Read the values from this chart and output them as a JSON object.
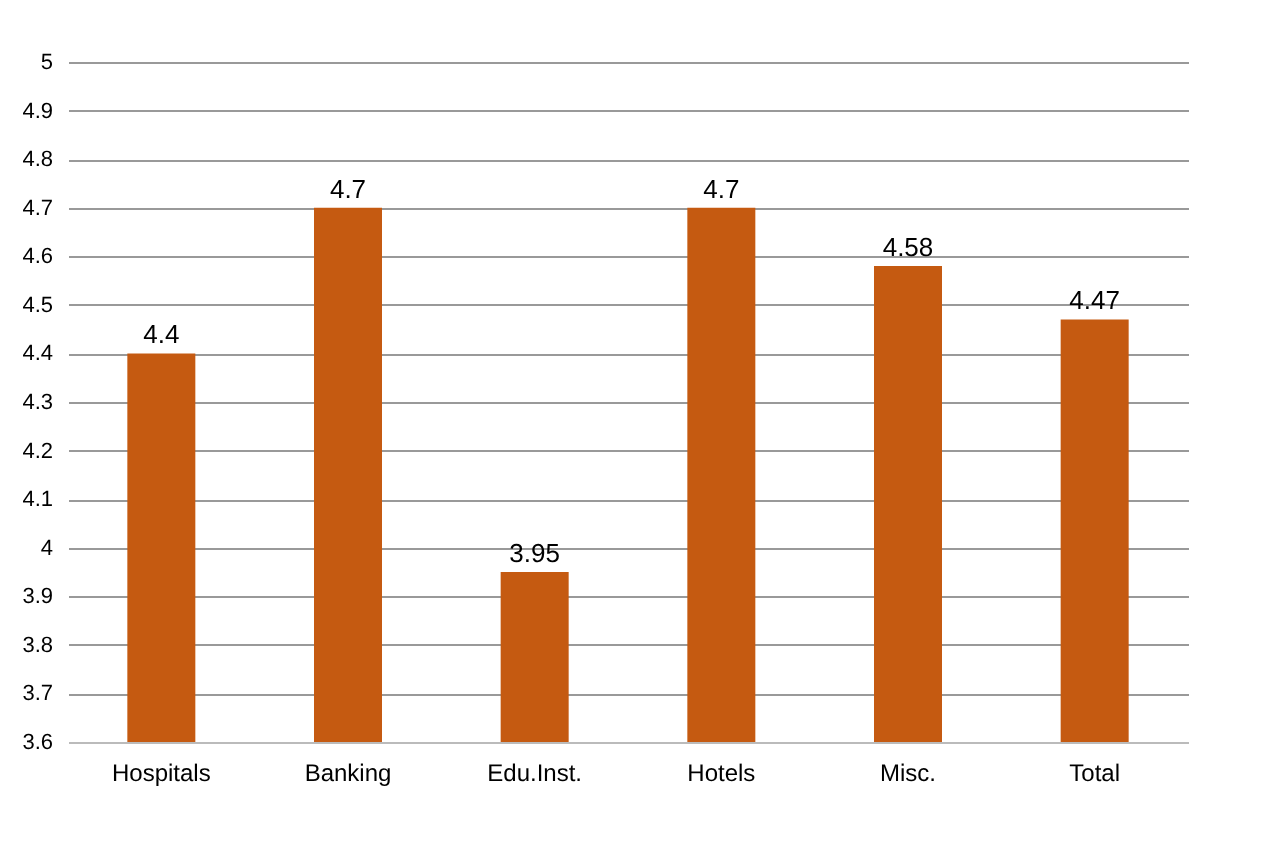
{
  "chart_data": {
    "type": "bar",
    "categories": [
      "Hospitals",
      "Banking",
      "Edu.Inst.",
      "Hotels",
      "Misc.",
      "Total"
    ],
    "values": [
      4.4,
      4.7,
      3.95,
      4.7,
      4.58,
      4.47
    ],
    "color": "#c55a11",
    "ylim": [
      3.6,
      5
    ],
    "yticks": [
      3.6,
      3.7,
      3.8,
      3.9,
      4,
      4.1,
      4.2,
      4.3,
      4.4,
      4.5,
      4.6,
      4.7,
      4.8,
      4.9,
      5
    ],
    "grid": "y",
    "data_labels": true
  }
}
